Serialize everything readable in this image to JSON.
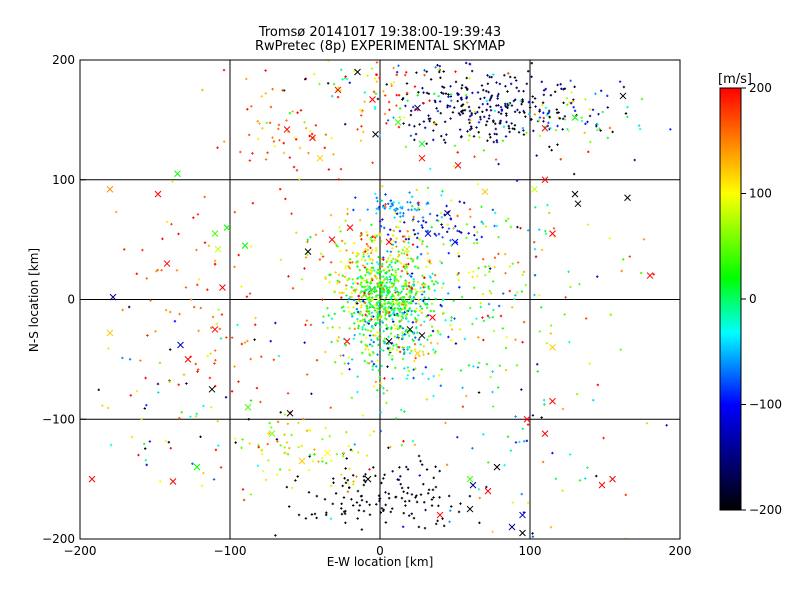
{
  "chart_data": {
    "type": "scatter",
    "title_line1": "Tromsø 20141017 19:38:00-19:39:43",
    "title_line2": "RwPretec (8p) EXPERIMENTAL SKYMAP",
    "xlabel": "E-W location [km]",
    "ylabel": "N-S location [km]",
    "xlim": [
      -200,
      200
    ],
    "ylim": [
      -200,
      200
    ],
    "x_ticks": [
      -200,
      -100,
      0,
      100,
      200
    ],
    "y_ticks": [
      -200,
      -100,
      0,
      100,
      200
    ],
    "grid": true,
    "colorbar": {
      "label": "[m/s]",
      "range": [
        -200,
        200
      ],
      "ticks": [
        200,
        100,
        0,
        -100,
        -200
      ]
    },
    "clusters": [
      {
        "cx": 5,
        "cy": -15,
        "sx": 18,
        "sy": 28,
        "n": 420,
        "vel": 10,
        "vsd": 60
      },
      {
        "cx": 5,
        "cy": 5,
        "sx": 12,
        "sy": 14,
        "n": 260,
        "vel": 20,
        "vsd": 25
      },
      {
        "cx": -8,
        "cy": 25,
        "sx": 18,
        "sy": 25,
        "n": 200,
        "vel": 110,
        "vsd": 50
      },
      {
        "cx": 45,
        "cy": 20,
        "sx": 40,
        "sy": 40,
        "n": 200,
        "vel": 60,
        "vsd": 70
      },
      {
        "cx": 70,
        "cy": 160,
        "sx": 30,
        "sy": 18,
        "n": 260,
        "vel": -175,
        "vsd": 35
      },
      {
        "cx": 130,
        "cy": 155,
        "sx": 30,
        "sy": 12,
        "n": 90,
        "vel": -30,
        "vsd": 120
      },
      {
        "cx": 0,
        "cy": 175,
        "sx": 35,
        "sy": 18,
        "n": 110,
        "vel": 80,
        "vsd": 120
      },
      {
        "cx": -60,
        "cy": 140,
        "sx": 25,
        "sy": 20,
        "n": 60,
        "vel": 160,
        "vsd": 40
      },
      {
        "cx": 40,
        "cy": 60,
        "sx": 20,
        "sy": 12,
        "n": 60,
        "vel": -110,
        "vsd": 30
      },
      {
        "cx": 10,
        "cy": 78,
        "sx": 12,
        "sy": 4,
        "n": 50,
        "vel": -55,
        "vsd": 20
      },
      {
        "cx": 0,
        "cy": -165,
        "sx": 28,
        "sy": 18,
        "n": 140,
        "vel": -200,
        "vsd": 15
      },
      {
        "cx": -55,
        "cy": -125,
        "sx": 25,
        "sy": 15,
        "n": 70,
        "vel": 95,
        "vsd": 40
      },
      {
        "cx": -100,
        "cy": -20,
        "sx": 50,
        "sy": 60,
        "n": 120,
        "vel": 175,
        "vsd": 40
      },
      {
        "cx": -120,
        "cy": -100,
        "sx": 40,
        "sy": 40,
        "n": 60,
        "vel": -30,
        "vsd": 150
      },
      {
        "cx": 70,
        "cy": -120,
        "sx": 50,
        "sy": 50,
        "n": 90,
        "vel": 0,
        "vsd": 140
      },
      {
        "cx": 80,
        "cy": 40,
        "sx": 60,
        "sy": 60,
        "n": 90,
        "vel": 60,
        "vsd": 120
      }
    ],
    "cross_markers": [
      {
        "x": -180,
        "y": 92,
        "v": 150
      },
      {
        "x": -148,
        "y": 88,
        "v": 200
      },
      {
        "x": -135,
        "y": 105,
        "v": 20
      },
      {
        "x": -178,
        "y": 2,
        "v": -150
      },
      {
        "x": -180,
        "y": -28,
        "v": 120
      },
      {
        "x": -142,
        "y": 30,
        "v": 200
      },
      {
        "x": -110,
        "y": -25,
        "v": 200
      },
      {
        "x": -133,
        "y": -38,
        "v": -120
      },
      {
        "x": -128,
        "y": -50,
        "v": 200
      },
      {
        "x": -112,
        "y": -75,
        "v": -200
      },
      {
        "x": -192,
        "y": -150,
        "v": 200
      },
      {
        "x": -138,
        "y": -152,
        "v": 200
      },
      {
        "x": -122,
        "y": -140,
        "v": 20
      },
      {
        "x": -108,
        "y": 42,
        "v": 80
      },
      {
        "x": -110,
        "y": 55,
        "v": 40
      },
      {
        "x": -102,
        "y": 60,
        "v": 20
      },
      {
        "x": -105,
        "y": 10,
        "v": 200
      },
      {
        "x": -88,
        "y": -90,
        "v": 40
      },
      {
        "x": -62,
        "y": 142,
        "v": 200
      },
      {
        "x": -45,
        "y": 135,
        "v": 200
      },
      {
        "x": -40,
        "y": 118,
        "v": 120
      },
      {
        "x": -28,
        "y": 175,
        "v": 200
      },
      {
        "x": -15,
        "y": 190,
        "v": -200
      },
      {
        "x": -5,
        "y": 167,
        "v": 200
      },
      {
        "x": 12,
        "y": 148,
        "v": 40
      },
      {
        "x": 25,
        "y": 160,
        "v": -150
      },
      {
        "x": 28,
        "y": 130,
        "v": 20
      },
      {
        "x": 110,
        "y": 143,
        "v": 200
      },
      {
        "x": 130,
        "y": 152,
        "v": 20
      },
      {
        "x": 162,
        "y": 170,
        "v": -200
      },
      {
        "x": 132,
        "y": 80,
        "v": -200
      },
      {
        "x": 130,
        "y": 88,
        "v": -200
      },
      {
        "x": 165,
        "y": 85,
        "v": -200
      },
      {
        "x": 110,
        "y": 100,
        "v": 200
      },
      {
        "x": 103,
        "y": 92,
        "v": 80
      },
      {
        "x": 115,
        "y": 55,
        "v": 200
      },
      {
        "x": 180,
        "y": 20,
        "v": 200
      },
      {
        "x": 115,
        "y": -40,
        "v": 120
      },
      {
        "x": 115,
        "y": -85,
        "v": 200
      },
      {
        "x": 98,
        "y": -100,
        "v": 200
      },
      {
        "x": 110,
        "y": -112,
        "v": 200
      },
      {
        "x": 155,
        "y": -150,
        "v": 200
      },
      {
        "x": 148,
        "y": -155,
        "v": 200
      },
      {
        "x": 88,
        "y": -190,
        "v": -150
      },
      {
        "x": 95,
        "y": -180,
        "v": -120
      },
      {
        "x": 60,
        "y": -175,
        "v": -200
      },
      {
        "x": 40,
        "y": -180,
        "v": 200
      },
      {
        "x": -8,
        "y": -150,
        "v": -200
      },
      {
        "x": -35,
        "y": -128,
        "v": 100
      },
      {
        "x": -52,
        "y": -135,
        "v": 120
      },
      {
        "x": -72,
        "y": -112,
        "v": 60
      },
      {
        "x": -60,
        "y": -95,
        "v": -200
      },
      {
        "x": 32,
        "y": 55,
        "v": -120
      },
      {
        "x": 45,
        "y": 72,
        "v": -150
      },
      {
        "x": 50,
        "y": 48,
        "v": -100
      },
      {
        "x": -20,
        "y": 60,
        "v": 200
      },
      {
        "x": -32,
        "y": 50,
        "v": 200
      },
      {
        "x": -48,
        "y": 40,
        "v": -200
      },
      {
        "x": 18,
        "y": 42,
        "v": 80
      },
      {
        "x": 6,
        "y": 48,
        "v": 200
      },
      {
        "x": 6,
        "y": -35,
        "v": -200
      },
      {
        "x": 20,
        "y": -25,
        "v": -200
      },
      {
        "x": 28,
        "y": -30,
        "v": -200
      },
      {
        "x": 35,
        "y": -15,
        "v": 200
      },
      {
        "x": 25,
        "y": -45,
        "v": 120
      },
      {
        "x": -22,
        "y": -35,
        "v": 200
      },
      {
        "x": 78,
        "y": -140,
        "v": -200
      },
      {
        "x": 72,
        "y": -160,
        "v": 200
      },
      {
        "x": 60,
        "y": -150,
        "v": 40
      },
      {
        "x": -90,
        "y": 45,
        "v": 20
      },
      {
        "x": 28,
        "y": 118,
        "v": 200
      },
      {
        "x": 52,
        "y": 112,
        "v": 200
      },
      {
        "x": 70,
        "y": 90,
        "v": 120
      },
      {
        "x": -3,
        "y": 138,
        "v": -200
      },
      {
        "x": 62,
        "y": -155,
        "v": -150
      },
      {
        "x": 95,
        "y": -195,
        "v": -200
      }
    ],
    "seed": 20141017
  },
  "colors": {
    "axis": "#000000",
    "background": "#ffffff",
    "colorbar_stops": [
      "#000000",
      "#0000ff",
      "#00ffff",
      "#00ff00",
      "#ffff00",
      "#ff0000"
    ]
  }
}
